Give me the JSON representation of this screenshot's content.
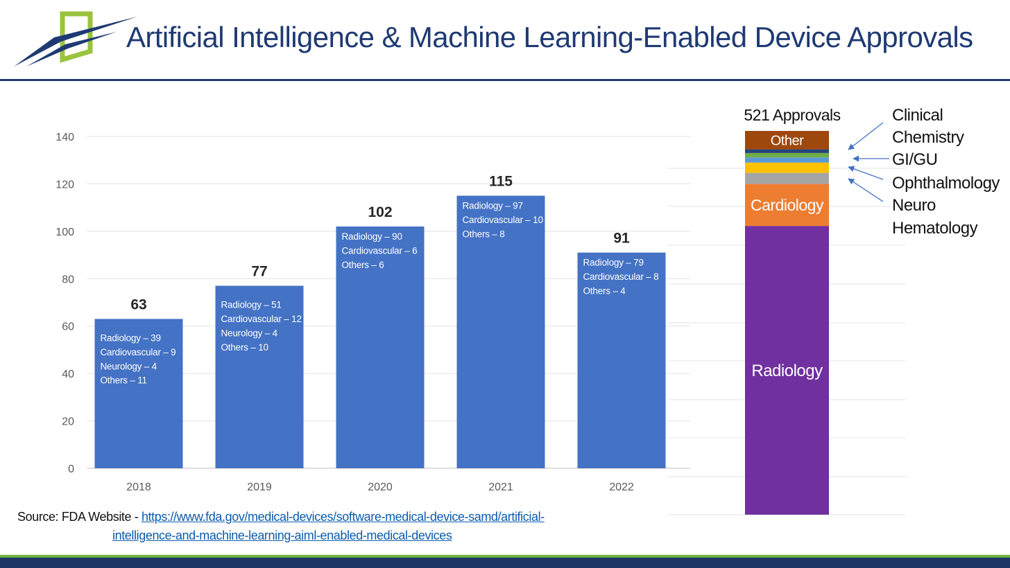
{
  "header": {
    "title": "Artificial Intelligence & Machine Learning-Enabled Device Approvals",
    "logo_icon": "swoosh-logo-icon",
    "accent_color": "#1f3a73",
    "logo_green": "#9ac33c"
  },
  "chart_data": [
    {
      "type": "bar",
      "categories": [
        "2018",
        "2019",
        "2020",
        "2021",
        "2022"
      ],
      "values": [
        63,
        77,
        102,
        115,
        91
      ],
      "data_labels": [
        "63",
        "77",
        "102",
        "115",
        "91"
      ],
      "breakdowns": [
        [
          "Radiology – 39",
          "Cardiovascular – 9",
          "Neurology – 4",
          "Others – 11"
        ],
        [
          "Radiology – 51",
          "Cardiovascular – 12",
          "Neurology – 4",
          "Others – 10"
        ],
        [
          "Radiology – 90",
          "Cardiovascular – 6",
          "Others – 6"
        ],
        [
          "Radiology – 97",
          "Cardiovascular – 10",
          "Others – 8"
        ],
        [
          "Radiology – 79",
          "Cardiovascular – 8",
          "Others – 4"
        ]
      ],
      "yticks": [
        "0",
        "20",
        "40",
        "60",
        "80",
        "100",
        "120",
        "140"
      ],
      "ylim": [
        0,
        140
      ],
      "grid": true,
      "color": "#4472c4"
    },
    {
      "type": "bar",
      "stacked": true,
      "total_label": "521 Approvals",
      "total": 521,
      "segments": [
        {
          "name": "Radiology",
          "value": 392,
          "color": "#7030a0",
          "label": "Radiology"
        },
        {
          "name": "Cardiology",
          "value": 57,
          "color": "#ed7d31",
          "label": "Cardiology"
        },
        {
          "name": "Hematology",
          "value": 15,
          "color": "#a5a5a5"
        },
        {
          "name": "Neuro",
          "value": 14,
          "color": "#ffc000"
        },
        {
          "name": "Ophthalmology",
          "value": 7,
          "color": "#5b9bd5"
        },
        {
          "name": "GI/GU",
          "value": 6,
          "color": "#70ad47"
        },
        {
          "name": "Clinical Chemistry",
          "value": 5,
          "color": "#264478"
        },
        {
          "name": "Other",
          "value": 25,
          "color": "#9e480e",
          "label": "Other"
        }
      ],
      "annotations": [
        "Clinical",
        "Chemistry",
        "GI/GU",
        "Ophthalmology",
        "Neuro",
        "Hematology"
      ],
      "annotation_color": "#4472c4"
    }
  ],
  "source": {
    "prefix": "Source: FDA Website - ",
    "link_line1": "https://www.fda.gov/medical-devices/software-medical-device-samd/artificial-",
    "link_line2": "intelligence-and-machine-learning-aiml-enabled-medical-devices"
  }
}
